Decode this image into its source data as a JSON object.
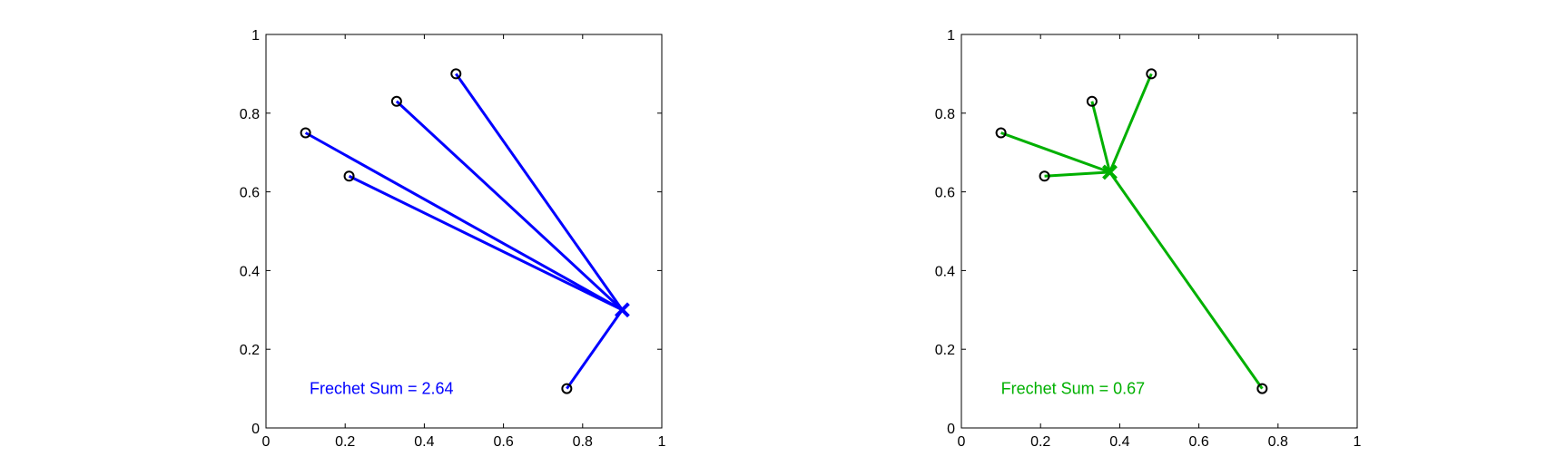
{
  "chart_data": [
    {
      "type": "scatter",
      "xlim": [
        0,
        1
      ],
      "ylim": [
        0,
        1
      ],
      "xticks": [
        "0",
        "0.2",
        "0.4",
        "0.6",
        "0.8",
        "1"
      ],
      "yticks": [
        "0",
        "0.2",
        "0.4",
        "0.6",
        "0.8",
        "1"
      ],
      "points": [
        {
          "x": 0.1,
          "y": 0.75
        },
        {
          "x": 0.21,
          "y": 0.64
        },
        {
          "x": 0.33,
          "y": 0.83
        },
        {
          "x": 0.48,
          "y": 0.9
        },
        {
          "x": 0.76,
          "y": 0.1
        }
      ],
      "center": {
        "x": 0.9,
        "y": 0.3
      },
      "color": "#0000ff",
      "annotation": "Frechet Sum = 2.64",
      "annotation_pos": {
        "x": 0.11,
        "y": 0.1
      },
      "grid": false,
      "legend": "none"
    },
    {
      "type": "scatter",
      "xlim": [
        0,
        1
      ],
      "ylim": [
        0,
        1
      ],
      "xticks": [
        "0",
        "0.2",
        "0.4",
        "0.6",
        "0.8",
        "1"
      ],
      "yticks": [
        "0",
        "0.2",
        "0.4",
        "0.6",
        "0.8",
        "1"
      ],
      "points": [
        {
          "x": 0.1,
          "y": 0.75
        },
        {
          "x": 0.21,
          "y": 0.64
        },
        {
          "x": 0.33,
          "y": 0.83
        },
        {
          "x": 0.48,
          "y": 0.9
        },
        {
          "x": 0.76,
          "y": 0.1
        }
      ],
      "center": {
        "x": 0.375,
        "y": 0.65
      },
      "color": "#00b000",
      "annotation": "Frechet Sum = 0.67",
      "annotation_pos": {
        "x": 0.1,
        "y": 0.1
      },
      "grid": false,
      "legend": "none"
    }
  ]
}
